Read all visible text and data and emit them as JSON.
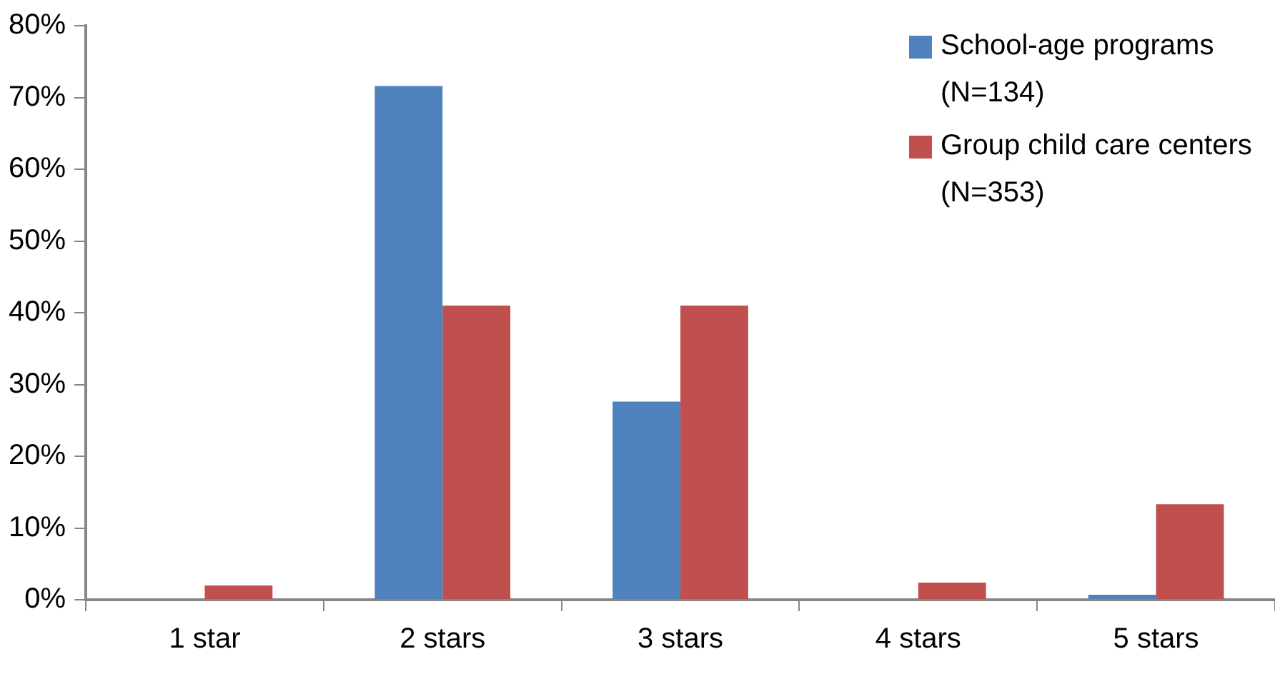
{
  "chart_data": {
    "type": "bar",
    "categories": [
      "1 star",
      "2 stars",
      "3 stars",
      "4 stars",
      "5 stars"
    ],
    "series": [
      {
        "name": "School-age programs (N=134)",
        "color": "#4f81bd",
        "values": [
          0,
          71.6,
          27.6,
          0,
          0.7
        ]
      },
      {
        "name": "Group child care centers (N=353)",
        "color": "#c0504d",
        "values": [
          2.0,
          41.0,
          41.0,
          2.4,
          13.3
        ]
      }
    ],
    "ylim": [
      0,
      80
    ],
    "yticks": [
      {
        "value": 0,
        "label": "0%"
      },
      {
        "value": 10,
        "label": "10%"
      },
      {
        "value": 20,
        "label": "20%"
      },
      {
        "value": 30,
        "label": "30%"
      },
      {
        "value": 40,
        "label": "40%"
      },
      {
        "value": 50,
        "label": "50%"
      },
      {
        "value": 60,
        "label": "60%"
      },
      {
        "value": 70,
        "label": "70%"
      },
      {
        "value": 80,
        "label": "80%"
      }
    ],
    "grid": false,
    "legend": "top right"
  }
}
